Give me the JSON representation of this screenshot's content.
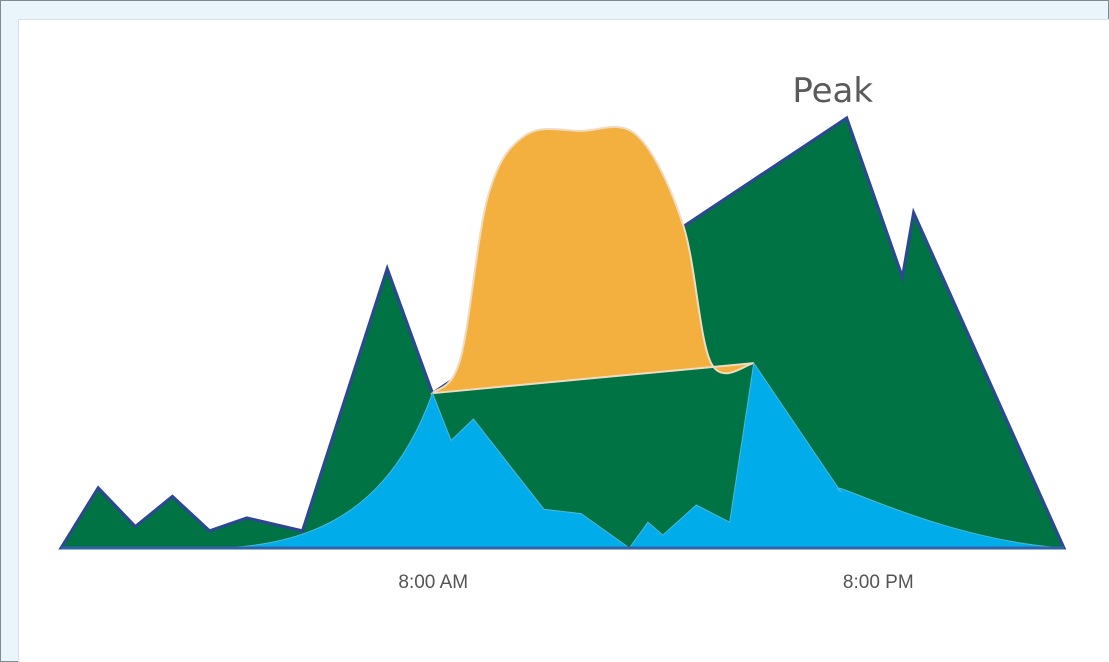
{
  "colors": {
    "solar": "#f4b03f",
    "base_demand": "#00adea",
    "peak_demand": "#007344",
    "outline": "#2d4795",
    "solar_edge": "#efdcc0"
  },
  "chart_data": {
    "type": "area",
    "title": "",
    "xlabel": "",
    "ylabel": "",
    "x_tick_labels": [
      "8:00 AM",
      "8:00 PM"
    ],
    "annotations": [
      {
        "text": "Peak",
        "target_series": "demand"
      }
    ],
    "grid": false,
    "legend": "none",
    "series": [
      {
        "type": "area",
        "color_key": "peak_demand",
        "values": [
          [
            0.0,
            0.0
          ],
          [
            1.0,
            0.14
          ],
          [
            2.0,
            0.05
          ],
          [
            3.0,
            0.12
          ],
          [
            4.0,
            0.04
          ],
          [
            5.0,
            0.07
          ],
          [
            6.5,
            0.04
          ],
          [
            8.78,
            0.65
          ],
          [
            10.0,
            0.36
          ],
          [
            21.15,
            1.0
          ],
          [
            22.65,
            0.63
          ],
          [
            22.95,
            0.78
          ],
          [
            27.0,
            0.0
          ]
        ]
      },
      {
        "type": "area",
        "color_key": "solar",
        "values": [
          [
            10.0,
            0.36
          ],
          [
            10.75,
            0.44
          ],
          [
            11.5,
            0.82
          ],
          [
            12.5,
            0.96
          ],
          [
            14.0,
            0.97
          ],
          [
            15.5,
            0.96
          ],
          [
            16.75,
            0.75
          ],
          [
            17.5,
            0.43
          ],
          [
            18.65,
            0.43
          ]
        ]
      },
      {
        "type": "area",
        "color_key": "base_demand",
        "values": [
          [
            0.0,
            0.0
          ],
          [
            4.0,
            0.0
          ],
          [
            7.0,
            0.04
          ],
          [
            10.0,
            0.36
          ],
          [
            10.5,
            0.25
          ],
          [
            11.1,
            0.3
          ],
          [
            13.0,
            0.09
          ],
          [
            14.0,
            0.08
          ],
          [
            15.3,
            0.0
          ],
          [
            15.8,
            0.06
          ],
          [
            16.2,
            0.03
          ],
          [
            17.1,
            0.1
          ],
          [
            18.0,
            0.06
          ],
          [
            18.65,
            0.43
          ],
          [
            21.0,
            0.13
          ],
          [
            24.0,
            0.03
          ],
          [
            27.0,
            0.0
          ]
        ]
      }
    ]
  }
}
